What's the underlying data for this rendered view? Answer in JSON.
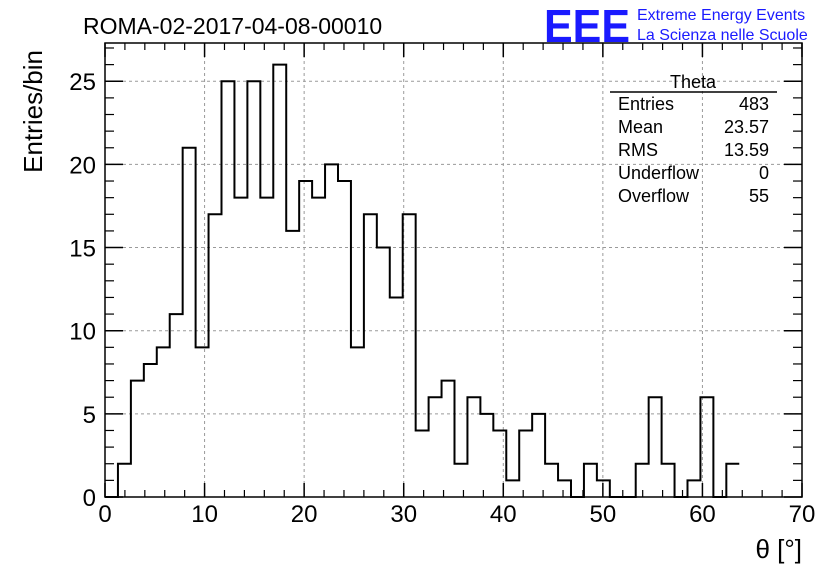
{
  "header": {
    "run_title": "ROMA-02-2017-04-08-00010",
    "logo_text": "EEE",
    "logo_line1": "Extreme Energy Events",
    "logo_line2": "La Scienza nelle Scuole"
  },
  "stats": {
    "name": "Theta",
    "rows": [
      {
        "label": "Entries",
        "value": "483"
      },
      {
        "label": "Mean",
        "value": "23.57"
      },
      {
        "label": "RMS",
        "value": "13.59"
      },
      {
        "label": "Underflow",
        "value": "0"
      },
      {
        "label": "Overflow",
        "value": "55"
      }
    ]
  },
  "colors": {
    "logo": "#1a1aff",
    "line": "#000000",
    "grid": "#9a9a9a"
  },
  "chart_data": {
    "type": "histogram",
    "bin_width": 1.3,
    "x_start": 0,
    "values": [
      0,
      2,
      7,
      8,
      9,
      11,
      21,
      9,
      17,
      25,
      18,
      25,
      18,
      26,
      16,
      19,
      18,
      20,
      19,
      9,
      17,
      15,
      12,
      17,
      4,
      6,
      7,
      2,
      6,
      5,
      4,
      1,
      4,
      5,
      2,
      1,
      0,
      2,
      1,
      0,
      0,
      2,
      6,
      2,
      0,
      1,
      6,
      0,
      2
    ],
    "xlabel": "θ [°]",
    "ylabel": "Entries/bin",
    "xlim": [
      0,
      70
    ],
    "ylim": [
      0,
      27.3
    ],
    "x_ticks": [
      0,
      10,
      20,
      30,
      40,
      50,
      60,
      70
    ],
    "y_ticks": [
      0,
      5,
      10,
      15,
      20,
      25
    ],
    "grid": true
  }
}
